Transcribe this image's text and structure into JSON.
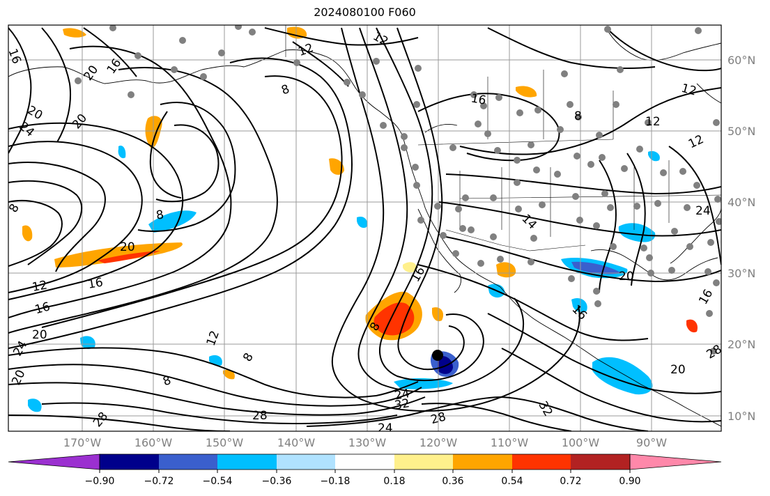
{
  "title": "2024080100 F060",
  "lat_labels": [
    "60°N",
    "50°N",
    "40°N",
    "30°N",
    "20°N",
    "10°N"
  ],
  "lon_labels": [
    "170°W",
    "160°W",
    "150°W",
    "140°W",
    "130°W",
    "120°W",
    "110°W",
    "100°W",
    "90°W"
  ],
  "colorbar": {
    "tick_labels": [
      "−0.90",
      "−0.72",
      "−0.54",
      "−0.36",
      "−0.18",
      "0.18",
      "0.36",
      "0.54",
      "0.72",
      "0.90"
    ],
    "under_color": "#9b30d0",
    "over_color": "#ff88aa",
    "colors": [
      "#00008b",
      "#3a5fcd",
      "#00bfff",
      "#b0e2ff",
      "#ffffff",
      "#fff08c",
      "#ffa500",
      "#ff3300",
      "#b22222"
    ]
  },
  "contour_labels": [
    {
      "text": "16"
    },
    {
      "text": "20"
    },
    {
      "text": "16"
    },
    {
      "text": "20"
    },
    {
      "text": "24"
    },
    {
      "text": "20"
    },
    {
      "text": "12"
    },
    {
      "text": "8"
    },
    {
      "text": "12"
    },
    {
      "text": "8"
    },
    {
      "text": "20"
    },
    {
      "text": "12"
    },
    {
      "text": "16"
    },
    {
      "text": "16"
    },
    {
      "text": "20"
    },
    {
      "text": "24"
    },
    {
      "text": "20"
    },
    {
      "text": "12"
    },
    {
      "text": "8"
    },
    {
      "text": "8"
    },
    {
      "text": "8"
    },
    {
      "text": "16"
    },
    {
      "text": "24"
    },
    {
      "text": "32"
    },
    {
      "text": "28"
    },
    {
      "text": "28"
    },
    {
      "text": "24"
    },
    {
      "text": "28"
    },
    {
      "text": "32"
    },
    {
      "text": "16"
    },
    {
      "text": "8"
    },
    {
      "text": "12"
    },
    {
      "text": "12"
    },
    {
      "text": "12"
    },
    {
      "text": "24"
    },
    {
      "text": "20"
    },
    {
      "text": "16"
    },
    {
      "text": "20"
    },
    {
      "text": "28"
    },
    {
      "text": "16"
    },
    {
      "text": "14"
    },
    {
      "text": "8"
    }
  ],
  "colors": {
    "frame": "#000000",
    "grid": "#9a9a9a",
    "contour": "#000000",
    "station": "#808080",
    "tick_text": "#808080"
  }
}
